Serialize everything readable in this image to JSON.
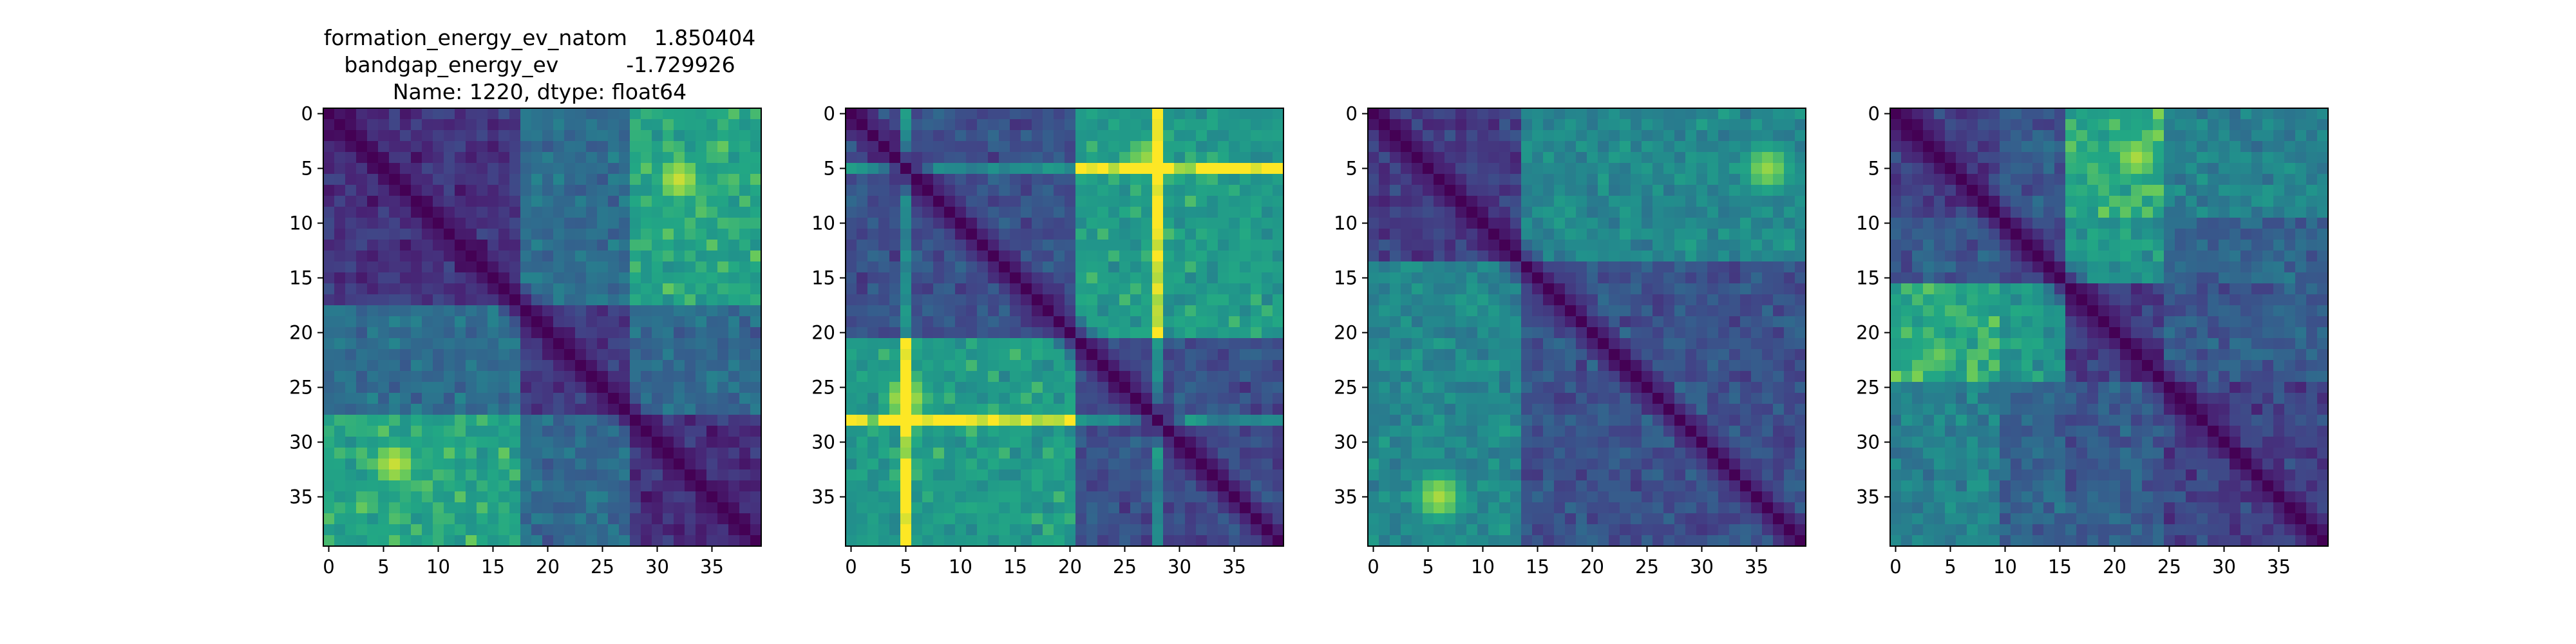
{
  "figure": {
    "title_lines": [
      "formation_energy_ev_natom    1.850404",
      "bandgap_energy_ev          -1.729926",
      "Name: 1220, dtype: float64"
    ]
  },
  "chart_data": [
    {
      "type": "heatmap",
      "colormap": "viridis",
      "size": 40,
      "block_boundaries": [
        0,
        18,
        28,
        40
      ],
      "block_levels": [
        [
          0.18,
          0.45,
          0.72
        ],
        [
          0.45,
          0.2,
          0.42
        ],
        [
          0.72,
          0.42,
          0.18
        ]
      ],
      "hot_spots": [
        {
          "row": 6,
          "col": 32,
          "value": 0.95
        },
        {
          "row": 32,
          "col": 6,
          "value": 0.95
        }
      ],
      "stripes": [],
      "x_ticks": [
        0,
        5,
        10,
        15,
        20,
        25,
        30,
        35
      ],
      "y_ticks": [
        0,
        5,
        10,
        15,
        20,
        25,
        30,
        35
      ],
      "xlim": [
        0,
        39
      ],
      "ylim": [
        39,
        0
      ],
      "grid": false
    },
    {
      "type": "heatmap",
      "colormap": "viridis",
      "size": 40,
      "block_boundaries": [
        0,
        21,
        40
      ],
      "block_levels": [
        [
          0.3,
          0.68
        ],
        [
          0.68,
          0.3
        ]
      ],
      "hot_spots": [
        {
          "row": 26,
          "col": 5,
          "value": 0.95
        },
        {
          "row": 4,
          "col": 27,
          "value": 0.9
        }
      ],
      "stripes": [
        5,
        28
      ],
      "x_ticks": [
        0,
        5,
        10,
        15,
        20,
        25,
        30,
        35
      ],
      "y_ticks": [
        0,
        5,
        10,
        15,
        20,
        25,
        30,
        35
      ],
      "xlim": [
        0,
        39
      ],
      "ylim": [
        39,
        0
      ],
      "grid": false
    },
    {
      "type": "heatmap",
      "colormap": "viridis",
      "size": 40,
      "block_boundaries": [
        0,
        14,
        40
      ],
      "block_levels": [
        [
          0.22,
          0.58
        ],
        [
          0.58,
          0.32
        ]
      ],
      "hot_spots": [
        {
          "row": 5,
          "col": 36,
          "value": 0.9
        },
        {
          "row": 35,
          "col": 6,
          "value": 0.92
        }
      ],
      "stripes": [],
      "x_ticks": [
        0,
        5,
        10,
        15,
        20,
        25,
        30,
        35
      ],
      "y_ticks": [
        0,
        5,
        10,
        15,
        20,
        25,
        30,
        35
      ],
      "xlim": [
        0,
        39
      ],
      "ylim": [
        39,
        0
      ],
      "grid": false
    },
    {
      "type": "heatmap",
      "colormap": "viridis",
      "size": 40,
      "block_boundaries": [
        0,
        10,
        16,
        25,
        40
      ],
      "block_levels": [
        [
          0.22,
          0.35,
          0.75,
          0.55
        ],
        [
          0.35,
          0.25,
          0.65,
          0.4
        ],
        [
          0.75,
          0.65,
          0.22,
          0.35
        ],
        [
          0.55,
          0.4,
          0.35,
          0.25
        ]
      ],
      "hot_spots": [
        {
          "row": 4,
          "col": 22,
          "value": 0.92
        },
        {
          "row": 22,
          "col": 4,
          "value": 0.85
        }
      ],
      "stripes": [],
      "x_ticks": [
        0,
        5,
        10,
        15,
        20,
        25,
        30,
        35
      ],
      "y_ticks": [
        0,
        5,
        10,
        15,
        20,
        25,
        30,
        35
      ],
      "xlim": [
        0,
        39
      ],
      "ylim": [
        39,
        0
      ],
      "grid": false
    }
  ]
}
